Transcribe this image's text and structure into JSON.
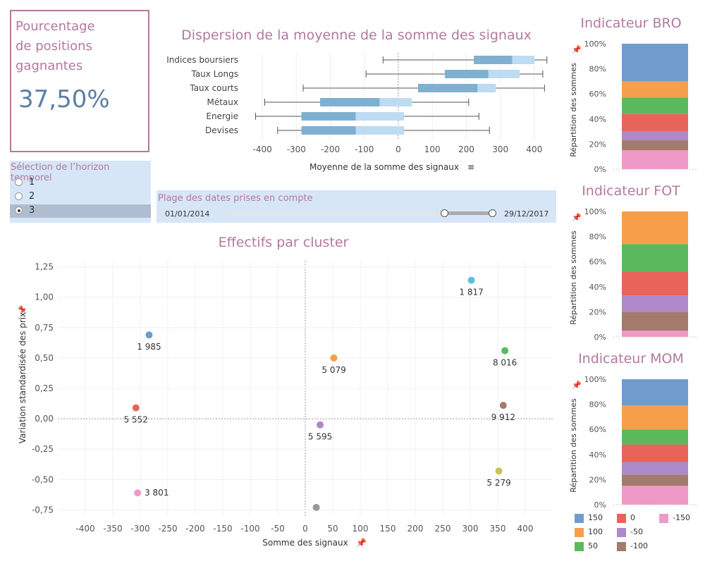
{
  "kpi": {
    "title_line1": "Pourcentage",
    "title_line2": "de positions",
    "title_line3": "gagnantes",
    "value": "37,50%"
  },
  "horizon": {
    "title": "Sélection de l’horizon temporel",
    "options": [
      {
        "label": "1",
        "selected": false
      },
      {
        "label": "2",
        "selected": false
      },
      {
        "label": "3",
        "selected": true
      }
    ]
  },
  "date_range": {
    "title": "Plage des dates prises en compte",
    "start": "01/01/2014",
    "end": "29/12/2017",
    "selected_range": [
      0.81,
      0.99
    ]
  },
  "colors": {
    "title": "#b3799f",
    "kpi_value": "#5b7fa6",
    "box_dark": "#7fb0cf",
    "box_light": "#bddcf2",
    "panel_bg": "#d7e6f7",
    "legend": {
      "150": "#6f9ccc",
      "100": "#f79e4b",
      "50": "#5cb85c",
      "0": "#e8645a",
      "-50": "#ad89c8",
      "-100": "#a47a6c",
      "-150": "#ef99c9"
    }
  },
  "chart_data": [
    {
      "type": "boxplot",
      "title": "Dispersion de la moyenne de la somme des signaux",
      "xlabel": "Moyenne de la somme des signaux",
      "xlim": [
        -450,
        450
      ],
      "xticks": [
        -400,
        -300,
        -200,
        -100,
        0,
        100,
        200,
        300,
        400
      ],
      "categories": [
        "Indices boursiers",
        "Taux Longs",
        "Taux courts",
        "Métaux",
        "Energie",
        "Devises"
      ],
      "boxes": [
        {
          "min": -45,
          "q1": 222,
          "median": 335,
          "q3": 400,
          "max": 437
        },
        {
          "min": -95,
          "q1": 137,
          "median": 265,
          "q3": 357,
          "max": 425
        },
        {
          "min": -280,
          "q1": 58,
          "median": 233,
          "q3": 287,
          "max": 430
        },
        {
          "min": -393,
          "q1": -230,
          "median": -55,
          "q3": 40,
          "max": 207
        },
        {
          "min": -420,
          "q1": -285,
          "median": -125,
          "q3": 17,
          "max": 237
        },
        {
          "min": -355,
          "q1": -285,
          "median": -125,
          "q3": 17,
          "max": 268
        }
      ]
    },
    {
      "type": "scatter",
      "title": "Effectifs par cluster",
      "xlabel": "Somme des signaux",
      "ylabel": "Variation standardisée des prix",
      "xlim": [
        -450,
        450
      ],
      "ylim": [
        -0.8,
        1.3
      ],
      "xticks": [
        -400,
        -350,
        -300,
        -250,
        -200,
        -150,
        -100,
        -50,
        0,
        50,
        100,
        150,
        200,
        250,
        300,
        350,
        400
      ],
      "yticks": [
        -0.75,
        -0.5,
        -0.25,
        0.0,
        0.25,
        0.5,
        0.75,
        1.0,
        1.25
      ],
      "ytick_labels": [
        "-0,75",
        "-0,50",
        "-0,25",
        "0,00",
        "0,25",
        "0,50",
        "0,75",
        "1,00",
        "1,25"
      ],
      "points": [
        {
          "x": 302,
          "y": 1.14,
          "label": "1 817",
          "color": "#5bc0de"
        },
        {
          "x": -284,
          "y": 0.69,
          "label": "1 985",
          "color": "#6f9ccc"
        },
        {
          "x": 52,
          "y": 0.5,
          "label": "5 079",
          "color": "#f79e4b"
        },
        {
          "x": 363,
          "y": 0.56,
          "label": "8 016",
          "color": "#5cb85c"
        },
        {
          "x": -308,
          "y": 0.09,
          "label": "5 552",
          "color": "#e8645a"
        },
        {
          "x": 360,
          "y": 0.11,
          "label": "9 912",
          "color": "#a47a6c"
        },
        {
          "x": 27,
          "y": -0.05,
          "label": "5 595",
          "color": "#ad89c8"
        },
        {
          "x": 352,
          "y": -0.43,
          "label": "5 279",
          "color": "#c4c45a"
        },
        {
          "x": -305,
          "y": -0.61,
          "label": "3 801",
          "color": "#ef99c9"
        },
        {
          "x": 20,
          "y": -0.73,
          "label": "",
          "color": "#999999"
        }
      ]
    },
    {
      "type": "stacked_bar",
      "title": "Indicateur BRO",
      "ylabel": "Répartition des sommes",
      "yticks": [
        "0%",
        "20%",
        "40%",
        "60%",
        "80%",
        "100%"
      ],
      "series": [
        {
          "name": "-150",
          "value": 0.15
        },
        {
          "name": "-100",
          "value": 0.08
        },
        {
          "name": "-50",
          "value": 0.07
        },
        {
          "name": "0",
          "value": 0.14
        },
        {
          "name": "50",
          "value": 0.13
        },
        {
          "name": "100",
          "value": 0.13
        },
        {
          "name": "150",
          "value": 0.3
        }
      ]
    },
    {
      "type": "stacked_bar",
      "title": "Indicateur FOT",
      "ylabel": "Répartition des sommes",
      "yticks": [
        "0%",
        "20%",
        "40%",
        "60%",
        "80%",
        "100%"
      ],
      "series": [
        {
          "name": "-150",
          "value": 0.05
        },
        {
          "name": "-100",
          "value": 0.15
        },
        {
          "name": "-50",
          "value": 0.13
        },
        {
          "name": "0",
          "value": 0.19
        },
        {
          "name": "50",
          "value": 0.22
        },
        {
          "name": "100",
          "value": 0.26
        },
        {
          "name": "150",
          "value": 0.0
        }
      ]
    },
    {
      "type": "stacked_bar",
      "title": "Indicateur MOM",
      "ylabel": "Répartition des sommes",
      "yticks": [
        "0%",
        "20%",
        "40%",
        "60%",
        "80%",
        "100%"
      ],
      "series": [
        {
          "name": "-150",
          "value": 0.15
        },
        {
          "name": "-100",
          "value": 0.09
        },
        {
          "name": "-50",
          "value": 0.1
        },
        {
          "name": "0",
          "value": 0.14
        },
        {
          "name": "50",
          "value": 0.12
        },
        {
          "name": "100",
          "value": 0.19
        },
        {
          "name": "150",
          "value": 0.21
        }
      ]
    }
  ],
  "legend": {
    "items": [
      {
        "label": "150",
        "key": "150"
      },
      {
        "label": "0",
        "key": "0"
      },
      {
        "label": "-150",
        "key": "-150"
      },
      {
        "label": "100",
        "key": "100"
      },
      {
        "label": "-50",
        "key": "-50"
      },
      {
        "label": "50",
        "key": "50"
      },
      {
        "label": "-100",
        "key": "-100"
      }
    ]
  }
}
